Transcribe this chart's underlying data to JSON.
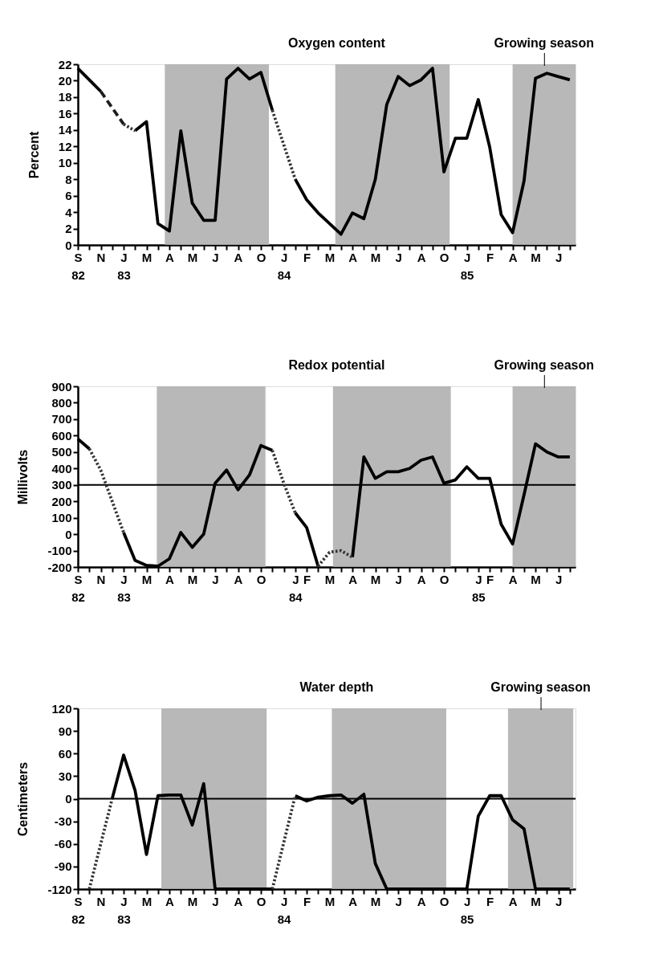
{
  "chart_data": [
    {
      "type": "line",
      "title": "Oxygen content",
      "ylabel": "Percent",
      "ylim": [
        0,
        22
      ],
      "yticks": [
        0,
        2,
        4,
        6,
        8,
        10,
        12,
        14,
        16,
        18,
        20,
        22
      ],
      "grid": false,
      "categories": [
        "S\n82",
        null,
        "N",
        null,
        "J\n83",
        null,
        "M",
        null,
        "A",
        null,
        "M",
        null,
        "J",
        null,
        "A",
        null,
        "O",
        null,
        "J\n84",
        null,
        "F",
        null,
        "M",
        null,
        "A",
        null,
        "M",
        null,
        "J",
        null,
        "A",
        null,
        "O",
        null,
        "J\n85",
        null,
        "F",
        null,
        "A",
        null,
        "M",
        null,
        "J",
        null
      ],
      "annotations": [
        "Growing season"
      ],
      "series": [
        {
          "color": "#000000",
          "line_style": "solid",
          "values": [
            21.5,
            20.1,
            18.7,
            null,
            null,
            null,
            null,
            null,
            null,
            null,
            null,
            null,
            null,
            null,
            null,
            null,
            null,
            null,
            null,
            null,
            null,
            null,
            null,
            null,
            null,
            null,
            null,
            null,
            null,
            null,
            null,
            null,
            null,
            null,
            null,
            null,
            null,
            null,
            null,
            null,
            null,
            null,
            null,
            null
          ]
        },
        {
          "color": "#000000",
          "line_style": "solid",
          "values": [
            null,
            null,
            null,
            null,
            null,
            13.9,
            15.0,
            2.6,
            1.7,
            13.9,
            5.1,
            3.0,
            3.0,
            20.2,
            21.5,
            20.2,
            21.0,
            16.4,
            null,
            null,
            null,
            null,
            null,
            null,
            null,
            null,
            null,
            null,
            null,
            null,
            null,
            null,
            null,
            null,
            null,
            null,
            null,
            null,
            null,
            null,
            null,
            null,
            null,
            null
          ]
        },
        {
          "color": "#000000",
          "line_style": "solid",
          "values": [
            null,
            null,
            null,
            null,
            null,
            null,
            null,
            null,
            null,
            null,
            null,
            null,
            null,
            null,
            null,
            null,
            null,
            null,
            null,
            8.0,
            5.5,
            3.9,
            2.6,
            1.3,
            3.9,
            3.2,
            8.0,
            17.1,
            20.5,
            19.4,
            20.1,
            21.5,
            8.9,
            13.0,
            13.0,
            17.7,
            11.9,
            3.7,
            1.5,
            7.8,
            20.3,
            20.9,
            20.5,
            20.1
          ]
        },
        {
          "color": "#1e1e1e",
          "line_style": "dashed",
          "values": [
            null,
            null,
            18.7,
            16.7,
            14.7,
            null,
            null,
            null,
            null,
            null,
            null,
            null,
            null,
            null,
            null,
            null,
            null,
            null,
            null,
            null,
            null,
            null,
            null,
            null,
            null,
            null,
            null,
            null,
            null,
            null,
            null,
            null,
            null,
            null,
            null,
            null,
            null,
            null,
            null,
            null,
            null,
            null,
            null,
            null
          ]
        },
        {
          "color": "#333333",
          "line_style": "dotted",
          "values": [
            null,
            null,
            null,
            null,
            14.7,
            13.9,
            null,
            null,
            null,
            null,
            null,
            null,
            null,
            null,
            null,
            null,
            null,
            16.4,
            12.2,
            8.0,
            null,
            null,
            null,
            null,
            null,
            null,
            null,
            null,
            null,
            null,
            null,
            null,
            null,
            null,
            null,
            null,
            null,
            null,
            null,
            null,
            null,
            null,
            null,
            null
          ]
        }
      ]
    },
    {
      "type": "line",
      "title": "Redox potential",
      "ylabel": "Millivolts",
      "ylim": [
        -200,
        900
      ],
      "yticks": [
        -200,
        -100,
        0,
        100,
        200,
        300,
        400,
        500,
        600,
        700,
        800,
        900
      ],
      "grid": false,
      "categories": [
        "S\n82",
        null,
        "N",
        null,
        "J\n83",
        null,
        "M",
        null,
        "A",
        null,
        "M",
        null,
        "J",
        null,
        "A",
        null,
        "O",
        null,
        null,
        "J\n84",
        "F",
        null,
        "M",
        null,
        "A",
        null,
        "M",
        null,
        "J",
        null,
        "A",
        null,
        "O",
        null,
        null,
        "J\n85",
        "F",
        null,
        "A",
        null,
        "M",
        null,
        "J",
        null
      ],
      "ref_lines": [
        {
          "axis": "y",
          "value": 300,
          "color": "#000000"
        }
      ],
      "annotations": [
        "Growing season"
      ],
      "series": [
        {
          "color": "#000000",
          "line_style": "solid",
          "values": [
            580,
            520,
            null,
            null,
            null,
            null,
            null,
            null,
            null,
            null,
            null,
            null,
            null,
            null,
            null,
            null,
            null,
            null,
            null,
            null,
            null,
            null,
            null,
            null,
            null,
            null,
            null,
            null,
            null,
            null,
            null,
            null,
            null,
            null,
            null,
            null,
            null,
            null,
            null,
            null,
            null,
            null,
            null,
            null
          ]
        },
        {
          "color": "#000000",
          "line_style": "solid",
          "values": [
            null,
            null,
            null,
            null,
            10,
            -160,
            -190,
            -195,
            -150,
            10,
            -80,
            0,
            310,
            390,
            270,
            360,
            540,
            510,
            null,
            null,
            null,
            null,
            null,
            null,
            null,
            null,
            null,
            null,
            null,
            null,
            null,
            null,
            null,
            null,
            null,
            null,
            null,
            null,
            null,
            null,
            null,
            null,
            null,
            null
          ]
        },
        {
          "color": "#000000",
          "line_style": "solid",
          "values": [
            null,
            null,
            null,
            null,
            null,
            null,
            null,
            null,
            null,
            null,
            null,
            null,
            null,
            null,
            null,
            null,
            null,
            null,
            null,
            130,
            40,
            -195,
            null,
            null,
            null,
            null,
            null,
            null,
            null,
            null,
            null,
            null,
            null,
            null,
            null,
            null,
            null,
            null,
            null,
            null,
            null,
            null,
            null,
            null
          ]
        },
        {
          "color": "#000000",
          "line_style": "solid",
          "values": [
            null,
            null,
            null,
            null,
            null,
            null,
            null,
            null,
            null,
            null,
            null,
            null,
            null,
            null,
            null,
            null,
            null,
            null,
            null,
            null,
            null,
            null,
            null,
            null,
            -140,
            470,
            340,
            380,
            380,
            400,
            450,
            470,
            310,
            330,
            410,
            340,
            340,
            60,
            -60,
            240,
            550,
            500,
            470,
            470
          ]
        },
        {
          "color": "#333333",
          "line_style": "dotted",
          "values": [
            null,
            520,
            390,
            200,
            10,
            null,
            null,
            null,
            null,
            null,
            null,
            null,
            null,
            null,
            null,
            null,
            null,
            510,
            310,
            130,
            null,
            -195,
            -110,
            -100,
            -140,
            null,
            null,
            null,
            null,
            null,
            null,
            null,
            null,
            null,
            null,
            null,
            null,
            null,
            null,
            null,
            null,
            null,
            null,
            null
          ]
        }
      ]
    },
    {
      "type": "line",
      "title": "Water depth",
      "ylabel": "Centimeters",
      "ylim": [
        -120,
        120
      ],
      "yticks": [
        -120,
        -90,
        -60,
        -30,
        0,
        30,
        60,
        90,
        120
      ],
      "grid": false,
      "categories": [
        "S\n82",
        null,
        "N",
        null,
        "J\n83",
        null,
        "M",
        null,
        "A",
        null,
        "M",
        null,
        "J",
        null,
        "A",
        null,
        "O",
        null,
        "J\n84",
        null,
        "F",
        null,
        "M",
        null,
        "A",
        null,
        "M",
        null,
        "J",
        null,
        "A",
        null,
        "O",
        null,
        "J\n85",
        null,
        "F",
        null,
        "A",
        null,
        "M",
        null,
        "J",
        null
      ],
      "ref_lines": [
        {
          "axis": "y",
          "value": 0,
          "color": "#000000"
        }
      ],
      "annotations": [
        "Growing season"
      ],
      "series": [
        {
          "color": "#000000",
          "line_style": "solid",
          "values": [
            null,
            null,
            null,
            0,
            58,
            11,
            -74,
            4,
            5,
            5,
            -35,
            20,
            -120,
            -120,
            -120,
            -120,
            -120,
            -120,
            null,
            null,
            null,
            null,
            null,
            null,
            null,
            null,
            null,
            null,
            null,
            null,
            null,
            null,
            null,
            null,
            null,
            null,
            null,
            null,
            null,
            null,
            null,
            null,
            null,
            null
          ]
        },
        {
          "color": "#000000",
          "line_style": "solid",
          "values": [
            null,
            null,
            null,
            null,
            null,
            null,
            null,
            null,
            null,
            null,
            null,
            null,
            null,
            null,
            null,
            null,
            null,
            null,
            null,
            4,
            -3,
            2,
            4,
            5,
            -6,
            6,
            -86,
            -120,
            -120,
            -120,
            -120,
            -120,
            -120,
            -120,
            -120,
            -23,
            4,
            4,
            -28,
            -40,
            -120,
            -120,
            -120,
            -120
          ]
        },
        {
          "color": "#333333",
          "line_style": "dotted",
          "values": [
            null,
            -120,
            -60,
            0,
            null,
            null,
            null,
            null,
            null,
            null,
            null,
            null,
            null,
            null,
            null,
            null,
            null,
            -120,
            -58,
            4,
            null,
            null,
            null,
            null,
            null,
            null,
            null,
            null,
            null,
            null,
            null,
            null,
            null,
            null,
            null,
            null,
            null,
            null,
            null,
            null,
            null,
            null,
            null,
            null
          ]
        }
      ]
    }
  ]
}
